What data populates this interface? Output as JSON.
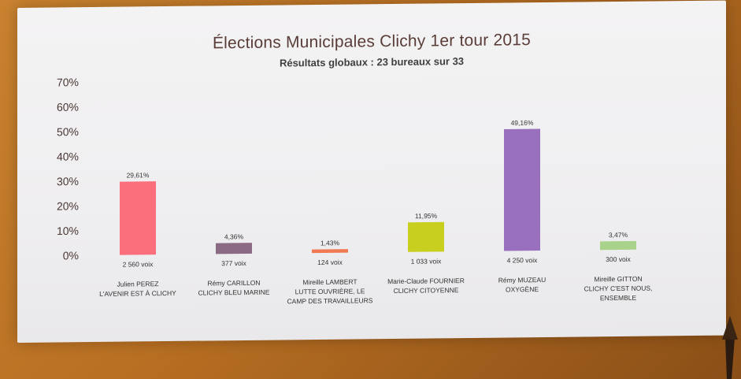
{
  "chart_data": {
    "type": "bar",
    "title": "Élections Municipales Clichy 1er tour 2015",
    "subtitle": "Résultats globaux : 23 bureaux sur 33",
    "ylim": [
      0,
      70
    ],
    "yticks": [
      "70%",
      "60%",
      "50%",
      "40%",
      "30%",
      "20%",
      "10%",
      "0%"
    ],
    "ytick_values": [
      70,
      60,
      50,
      40,
      30,
      20,
      10,
      0
    ],
    "grid": false,
    "categories": [
      [
        "Julien PEREZ",
        "L'AVENIR EST À CLICHY"
      ],
      [
        "Rémy CARILLON",
        "CLICHY BLEU MARINE"
      ],
      [
        "Mireille LAMBERT",
        "LUTTE OUVRIÈRE, LE",
        "CAMP DES TRAVAILLEURS"
      ],
      [
        "Marie-Claude FOURNIER",
        "CLICHY CITOYENNE"
      ],
      [
        "Rémy MUZEAU",
        "OXYGÈNE"
      ],
      [
        "Mireille GITTON",
        "CLICHY C'EST NOUS,",
        "ENSEMBLE"
      ]
    ],
    "values": [
      29.61,
      4.36,
      1.43,
      11.95,
      49.16,
      3.47
    ],
    "value_labels": [
      "29,61%",
      "4,36%",
      "1,43%",
      "11,95%",
      "49,16%",
      "3,47%"
    ],
    "votes": [
      "2 560 voix",
      "377 voix",
      "124 voix",
      "1 033 voix",
      "4 250 voix",
      "300 voix"
    ],
    "colors": [
      "#fb6e7c",
      "#8b6b84",
      "#f07a52",
      "#c9cf1f",
      "#9870be",
      "#a9d38a"
    ]
  }
}
